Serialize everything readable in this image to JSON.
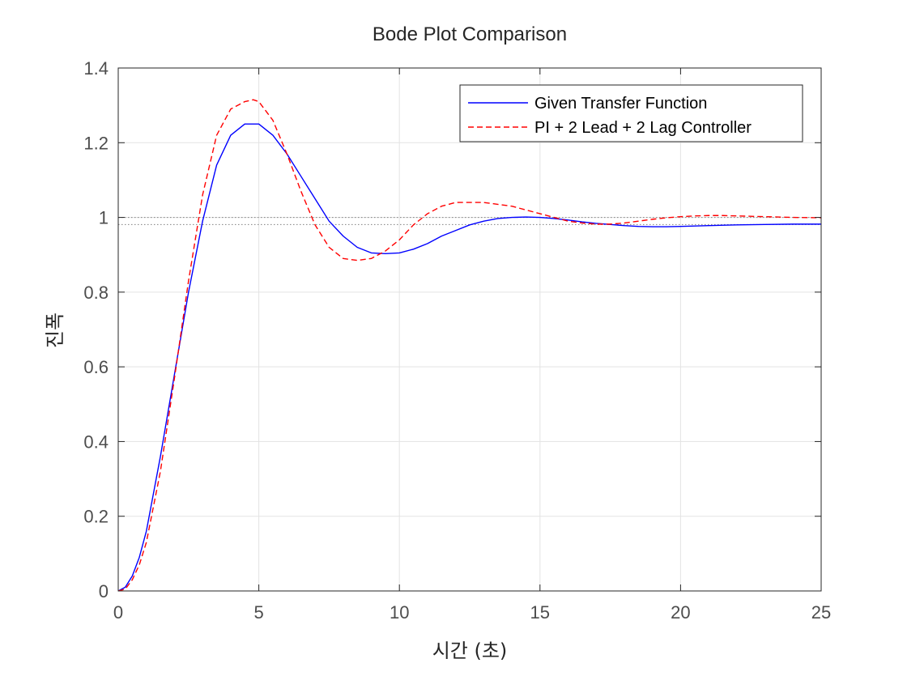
{
  "chart_data": {
    "type": "line",
    "title": "Bode Plot Comparison",
    "xlabel": "시간 (초)",
    "ylabel": "진폭",
    "xlim": [
      0,
      25
    ],
    "ylim": [
      0,
      1.4
    ],
    "xticks": [
      0,
      5,
      10,
      15,
      20,
      25
    ],
    "yticks": [
      0,
      0.2,
      0.4,
      0.6,
      0.8,
      1,
      1.2,
      1.4
    ],
    "xtick_labels": [
      "0",
      "5",
      "10",
      "15",
      "20",
      "25"
    ],
    "ytick_labels": [
      "0",
      "0.2",
      "0.4",
      "0.6",
      "0.8",
      "1",
      "1.2",
      "1.4"
    ],
    "grid": true,
    "legend_position": "top-right",
    "reference_lines": [
      {
        "y": 1.0,
        "style": "dotted",
        "color": "#808080"
      },
      {
        "y": 0.981,
        "style": "dotted",
        "color": "#808080"
      }
    ],
    "series": [
      {
        "name": "Given Transfer Function",
        "color": "#0000ff",
        "dash": "solid",
        "x": [
          0,
          0.25,
          0.5,
          0.75,
          1,
          1.5,
          2,
          2.5,
          3,
          3.5,
          4,
          4.5,
          5,
          5.5,
          6,
          6.5,
          7,
          7.5,
          8,
          8.5,
          9,
          9.5,
          10,
          10.5,
          11,
          11.5,
          12,
          12.5,
          13,
          13.5,
          14,
          14.5,
          15,
          15.5,
          16,
          16.5,
          17,
          17.5,
          18,
          18.5,
          19,
          19.5,
          20,
          21,
          22,
          23,
          24,
          25
        ],
        "y": [
          0,
          0.01,
          0.04,
          0.09,
          0.16,
          0.36,
          0.58,
          0.8,
          0.99,
          1.14,
          1.22,
          1.25,
          1.25,
          1.22,
          1.17,
          1.11,
          1.05,
          0.99,
          0.95,
          0.92,
          0.905,
          0.903,
          0.905,
          0.915,
          0.93,
          0.95,
          0.965,
          0.98,
          0.99,
          0.997,
          1.0,
          1.001,
          1.0,
          0.997,
          0.993,
          0.988,
          0.984,
          0.981,
          0.978,
          0.976,
          0.975,
          0.975,
          0.976,
          0.978,
          0.98,
          0.981,
          0.982,
          0.982
        ]
      },
      {
        "name": "PI + 2 Lead + 2 Lag Controller",
        "color": "#ff0000",
        "dash": "dashed",
        "x": [
          0,
          0.25,
          0.5,
          0.75,
          1,
          1.5,
          2,
          2.5,
          3,
          3.5,
          4,
          4.5,
          4.8,
          5,
          5.5,
          6,
          6.5,
          7,
          7.5,
          8,
          8.5,
          9,
          9.5,
          10,
          10.5,
          11,
          11.5,
          12,
          12.5,
          13,
          13.5,
          14,
          14.5,
          15,
          15.5,
          16,
          16.5,
          17,
          17.5,
          18,
          18.5,
          19,
          19.5,
          20,
          20.5,
          21,
          21.5,
          22,
          22.5,
          23,
          24,
          25
        ],
        "y": [
          0,
          0.005,
          0.03,
          0.07,
          0.13,
          0.32,
          0.57,
          0.83,
          1.06,
          1.22,
          1.29,
          1.31,
          1.315,
          1.31,
          1.26,
          1.17,
          1.07,
          0.98,
          0.92,
          0.89,
          0.885,
          0.89,
          0.91,
          0.94,
          0.98,
          1.01,
          1.03,
          1.04,
          1.04,
          1.04,
          1.035,
          1.03,
          1.02,
          1.01,
          1.0,
          0.99,
          0.985,
          0.982,
          0.982,
          0.985,
          0.99,
          0.995,
          0.999,
          1.002,
          1.004,
          1.005,
          1.005,
          1.004,
          1.003,
          1.002,
          1.0,
          0.999
        ]
      }
    ]
  }
}
